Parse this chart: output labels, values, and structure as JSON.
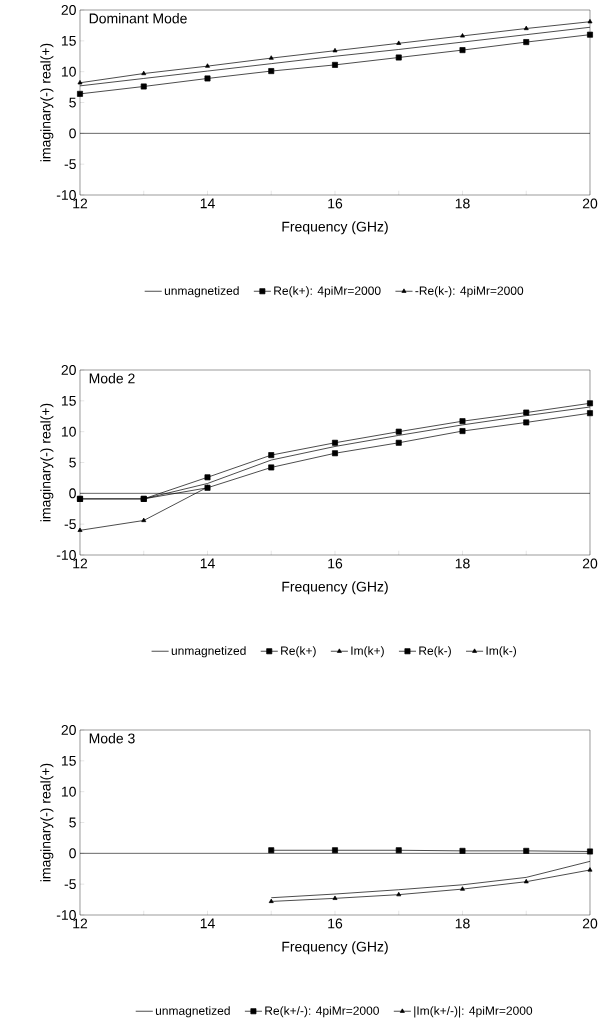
{
  "chart_data": [
    {
      "type": "line",
      "title": "Dominant Mode",
      "xlabel": "Frequency (GHz)",
      "ylabel": "imaginary(-)      real(+)",
      "xlim": [
        12,
        20
      ],
      "ylim": [
        -10,
        20
      ],
      "xticks": [
        12,
        {
          "value": 13,
          "label": null
        },
        14,
        {
          "value": 15,
          "label": null
        },
        16,
        {
          "value": 17,
          "label": null
        },
        18,
        {
          "value": 19,
          "label": null
        },
        20
      ],
      "yticks": [
        -10,
        -5,
        0,
        5,
        10,
        15,
        20
      ],
      "grid": false,
      "legend": "bottom",
      "ref_lines": [
        {
          "axis": "y",
          "value": 0
        }
      ],
      "x": [
        12,
        13,
        14,
        15,
        16,
        17,
        18,
        19,
        20
      ],
      "series": [
        {
          "name": "unmagnetized",
          "color": "#000000",
          "marker": "none",
          "values": [
            7.7,
            8.9,
            10.1,
            11.3,
            12.5,
            13.6,
            14.8,
            16.0,
            17.2
          ]
        },
        {
          "name": "Re(k+): 4piMr=2000",
          "color": "#000000",
          "marker": "square",
          "values": [
            6.4,
            7.6,
            8.9,
            10.1,
            11.1,
            12.3,
            13.5,
            14.8,
            16.0
          ]
        },
        {
          "name": "-Re(k-): 4piMr=2000",
          "color": "#000000",
          "marker": "triangle",
          "values": [
            8.2,
            9.7,
            10.9,
            12.2,
            13.4,
            14.6,
            15.8,
            17.0,
            18.1
          ]
        }
      ]
    },
    {
      "type": "line",
      "title": "Mode 2",
      "xlabel": "Frequency (GHz)",
      "ylabel": "imaginary(-)      real(+)",
      "xlim": [
        12,
        20
      ],
      "ylim": [
        -10,
        20
      ],
      "xticks": [
        12,
        {
          "value": 13,
          "label": null
        },
        14,
        {
          "value": 15,
          "label": null
        },
        16,
        {
          "value": 17,
          "label": null
        },
        18,
        {
          "value": 19,
          "label": null
        },
        20
      ],
      "yticks": [
        -10,
        -5,
        0,
        5,
        10,
        15,
        20
      ],
      "grid": false,
      "legend": "bottom",
      "ref_lines": [
        {
          "axis": "y",
          "value": 0
        }
      ],
      "x": [
        12,
        13,
        14,
        15,
        16,
        17,
        18,
        19,
        20
      ],
      "series": [
        {
          "name": "unmagnetized",
          "color": "#000000",
          "marker": "none",
          "values": [
            null,
            -0.9,
            1.6,
            5.4,
            7.6,
            9.4,
            11.1,
            12.6,
            14.0
          ]
        },
        {
          "name": "Re(k+)",
          "color": "#000000",
          "marker": "square",
          "values": [
            -0.9,
            -0.9,
            0.9,
            4.2,
            6.5,
            8.2,
            10.1,
            11.5,
            13.0
          ]
        },
        {
          "name": "Im(k+)",
          "color": "#000000",
          "marker": "triangle",
          "values": [
            -6.0,
            -4.4,
            1.0,
            null,
            null,
            null,
            null,
            null,
            null
          ]
        },
        {
          "name": "Re(k-)",
          "color": "#000000",
          "marker": "square",
          "values": [
            -0.9,
            -0.9,
            2.6,
            6.2,
            8.2,
            10.0,
            11.7,
            13.1,
            14.6
          ]
        },
        {
          "name": "Im(k-)",
          "color": "#000000",
          "marker": "triangle",
          "values": [
            null,
            null,
            null,
            null,
            null,
            null,
            null,
            null,
            null
          ]
        }
      ]
    },
    {
      "type": "line",
      "title": "Mode 3",
      "xlabel": "Frequency (GHz)",
      "ylabel": "imaginary(-)      real(+)",
      "xlim": [
        12,
        20
      ],
      "ylim": [
        -10,
        20
      ],
      "xticks": [
        12,
        {
          "value": 13,
          "label": null
        },
        14,
        {
          "value": 15,
          "label": null
        },
        16,
        {
          "value": 17,
          "label": null
        },
        18,
        {
          "value": 19,
          "label": null
        },
        20
      ],
      "yticks": [
        -10,
        -5,
        0,
        5,
        10,
        15,
        20
      ],
      "grid": false,
      "legend": "bottom",
      "ref_lines": [
        {
          "axis": "y",
          "value": 0
        }
      ],
      "x": [
        15,
        16,
        17,
        18,
        19,
        20
      ],
      "series": [
        {
          "name": "unmagnetized",
          "color": "#000000",
          "marker": "none",
          "values": [
            -7.2,
            -6.6,
            -5.9,
            -5.1,
            -3.9,
            -1.3
          ]
        },
        {
          "name": "Re(k+/-): 4piMr=2000",
          "color": "#000000",
          "marker": "square",
          "values": [
            0.5,
            0.5,
            0.5,
            0.4,
            0.4,
            0.3
          ]
        },
        {
          "name": "|Im(k+/-)|: 4piMr=2000",
          "color": "#000000",
          "marker": "triangle",
          "values": [
            -7.8,
            -7.3,
            -6.7,
            -5.8,
            -4.6,
            -2.7
          ]
        }
      ]
    }
  ]
}
